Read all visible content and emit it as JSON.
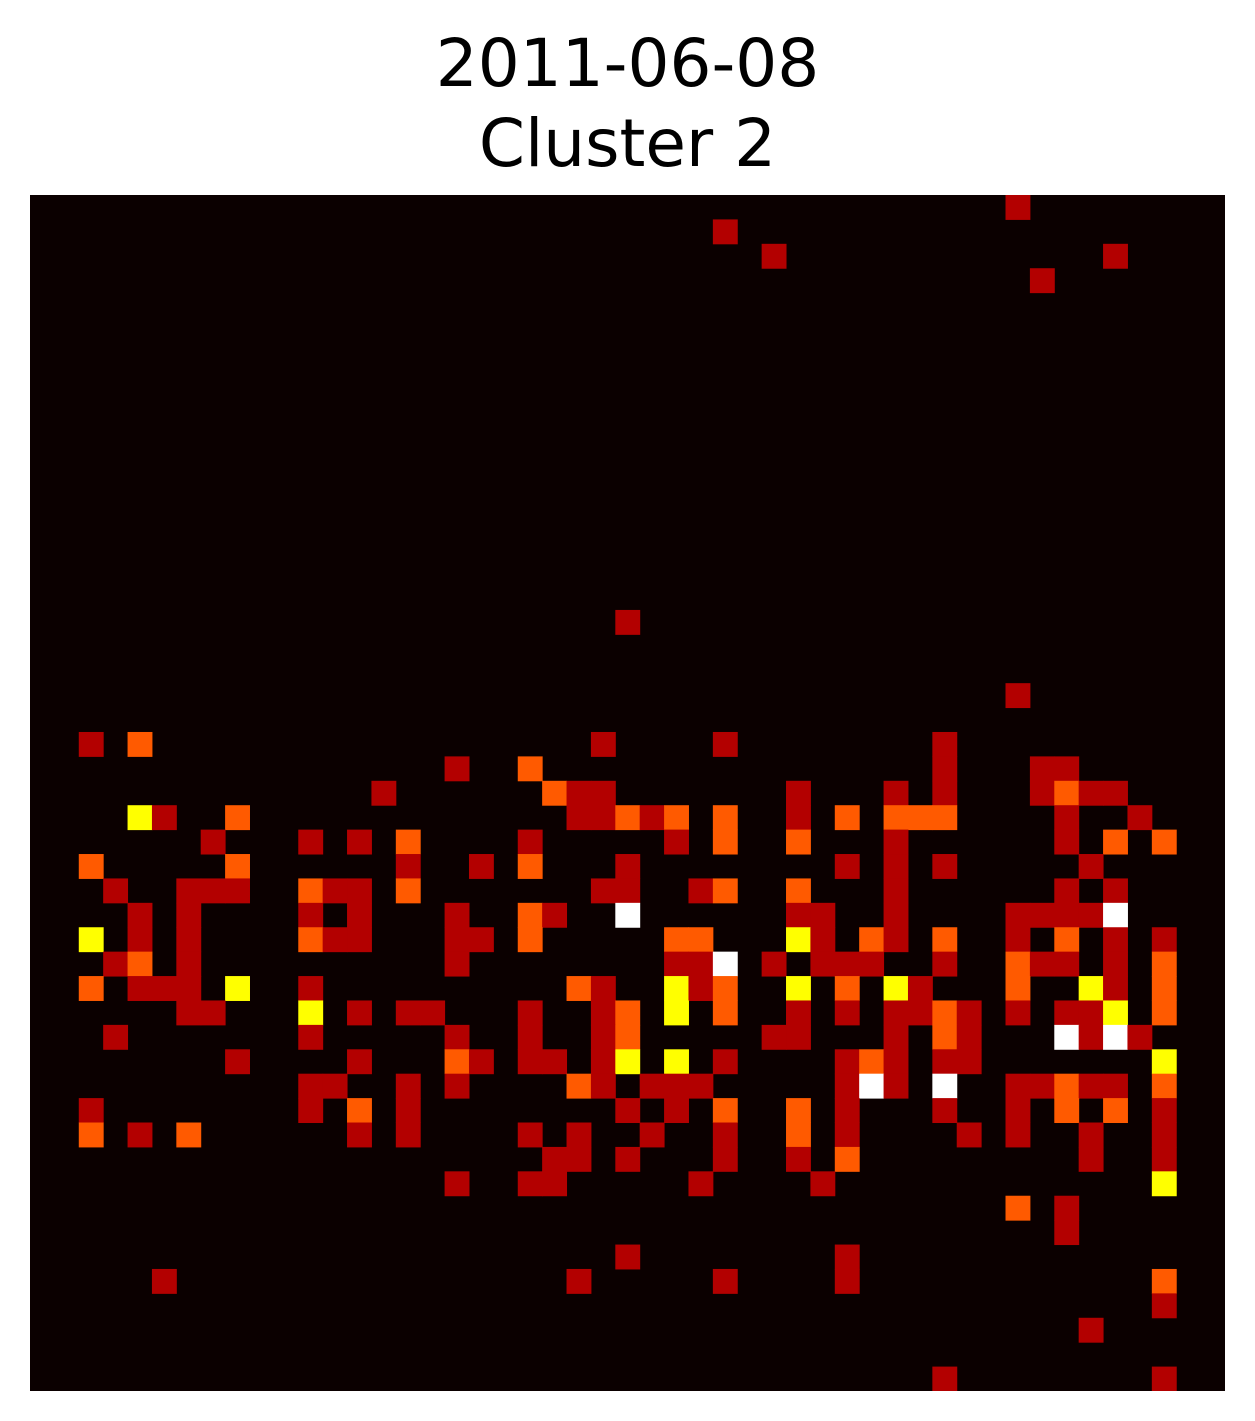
{
  "chart_data": {
    "type": "heatmap",
    "title": "2011-06-08",
    "subtitle": "Cluster 2",
    "xlabel": "",
    "ylabel": "",
    "axes_visible": false,
    "grid": false,
    "legend": "none",
    "colormap": "hot",
    "value_range": [
      0,
      4
    ],
    "n_rows": 49,
    "n_cols": 49,
    "colors": {
      "0": "#0b0000",
      "1": "#b30000",
      "2": "#ff5a00",
      "3": "#ffff00",
      "4": "#ffffff"
    },
    "cells": [
      [
        0,
        40,
        1
      ],
      [
        1,
        28,
        1
      ],
      [
        2,
        30,
        1
      ],
      [
        2,
        44,
        1
      ],
      [
        3,
        41,
        1
      ],
      [
        17,
        24,
        1
      ],
      [
        20,
        40,
        1
      ],
      [
        22,
        2,
        1
      ],
      [
        22,
        4,
        2
      ],
      [
        22,
        23,
        1
      ],
      [
        22,
        28,
        1
      ],
      [
        22,
        37,
        1
      ],
      [
        23,
        17,
        1
      ],
      [
        23,
        20,
        2
      ],
      [
        23,
        37,
        1
      ],
      [
        23,
        41,
        1
      ],
      [
        23,
        42,
        1
      ],
      [
        24,
        14,
        1
      ],
      [
        24,
        21,
        2
      ],
      [
        24,
        22,
        1
      ],
      [
        24,
        23,
        1
      ],
      [
        24,
        31,
        1
      ],
      [
        24,
        35,
        1
      ],
      [
        24,
        37,
        1
      ],
      [
        24,
        41,
        1
      ],
      [
        24,
        42,
        2
      ],
      [
        24,
        43,
        1
      ],
      [
        24,
        44,
        1
      ],
      [
        25,
        4,
        3
      ],
      [
        25,
        5,
        1
      ],
      [
        25,
        8,
        2
      ],
      [
        25,
        22,
        1
      ],
      [
        25,
        23,
        1
      ],
      [
        25,
        24,
        2
      ],
      [
        25,
        25,
        1
      ],
      [
        25,
        26,
        2
      ],
      [
        25,
        28,
        2
      ],
      [
        25,
        31,
        1
      ],
      [
        25,
        33,
        2
      ],
      [
        25,
        35,
        2
      ],
      [
        25,
        36,
        2
      ],
      [
        25,
        37,
        2
      ],
      [
        25,
        42,
        1
      ],
      [
        25,
        45,
        1
      ],
      [
        26,
        7,
        1
      ],
      [
        26,
        11,
        1
      ],
      [
        26,
        13,
        1
      ],
      [
        26,
        15,
        2
      ],
      [
        26,
        20,
        1
      ],
      [
        26,
        26,
        1
      ],
      [
        26,
        28,
        2
      ],
      [
        26,
        31,
        2
      ],
      [
        26,
        35,
        1
      ],
      [
        26,
        42,
        1
      ],
      [
        26,
        44,
        2
      ],
      [
        26,
        46,
        2
      ],
      [
        27,
        2,
        2
      ],
      [
        27,
        8,
        2
      ],
      [
        27,
        15,
        1
      ],
      [
        27,
        18,
        1
      ],
      [
        27,
        20,
        2
      ],
      [
        27,
        24,
        1
      ],
      [
        27,
        33,
        1
      ],
      [
        27,
        35,
        1
      ],
      [
        27,
        37,
        1
      ],
      [
        27,
        43,
        1
      ],
      [
        28,
        3,
        1
      ],
      [
        28,
        6,
        1
      ],
      [
        28,
        7,
        1
      ],
      [
        28,
        8,
        1
      ],
      [
        28,
        11,
        2
      ],
      [
        28,
        12,
        1
      ],
      [
        28,
        13,
        1
      ],
      [
        28,
        15,
        2
      ],
      [
        28,
        23,
        1
      ],
      [
        28,
        24,
        1
      ],
      [
        28,
        27,
        1
      ],
      [
        28,
        28,
        2
      ],
      [
        28,
        31,
        2
      ],
      [
        28,
        35,
        1
      ],
      [
        28,
        42,
        1
      ],
      [
        28,
        44,
        1
      ],
      [
        29,
        4,
        1
      ],
      [
        29,
        6,
        1
      ],
      [
        29,
        11,
        1
      ],
      [
        29,
        13,
        1
      ],
      [
        29,
        17,
        1
      ],
      [
        29,
        20,
        2
      ],
      [
        29,
        21,
        1
      ],
      [
        29,
        24,
        4
      ],
      [
        29,
        31,
        1
      ],
      [
        29,
        32,
        1
      ],
      [
        29,
        35,
        1
      ],
      [
        29,
        40,
        1
      ],
      [
        29,
        41,
        1
      ],
      [
        29,
        42,
        1
      ],
      [
        29,
        43,
        1
      ],
      [
        29,
        44,
        4
      ],
      [
        30,
        2,
        3
      ],
      [
        30,
        4,
        1
      ],
      [
        30,
        6,
        1
      ],
      [
        30,
        11,
        2
      ],
      [
        30,
        12,
        1
      ],
      [
        30,
        13,
        1
      ],
      [
        30,
        17,
        1
      ],
      [
        30,
        18,
        1
      ],
      [
        30,
        20,
        2
      ],
      [
        30,
        26,
        2
      ],
      [
        30,
        27,
        2
      ],
      [
        30,
        31,
        3
      ],
      [
        30,
        32,
        1
      ],
      [
        30,
        34,
        2
      ],
      [
        30,
        35,
        1
      ],
      [
        30,
        37,
        2
      ],
      [
        30,
        40,
        1
      ],
      [
        30,
        42,
        2
      ],
      [
        30,
        44,
        1
      ],
      [
        30,
        46,
        1
      ],
      [
        31,
        3,
        1
      ],
      [
        31,
        4,
        2
      ],
      [
        31,
        6,
        1
      ],
      [
        31,
        17,
        1
      ],
      [
        31,
        26,
        1
      ],
      [
        31,
        27,
        1
      ],
      [
        31,
        28,
        4
      ],
      [
        31,
        30,
        1
      ],
      [
        31,
        32,
        1
      ],
      [
        31,
        33,
        1
      ],
      [
        31,
        34,
        1
      ],
      [
        31,
        37,
        1
      ],
      [
        31,
        40,
        2
      ],
      [
        31,
        41,
        1
      ],
      [
        31,
        42,
        1
      ],
      [
        31,
        44,
        1
      ],
      [
        31,
        46,
        2
      ],
      [
        32,
        2,
        2
      ],
      [
        32,
        4,
        1
      ],
      [
        32,
        5,
        1
      ],
      [
        32,
        6,
        1
      ],
      [
        32,
        8,
        3
      ],
      [
        32,
        11,
        1
      ],
      [
        32,
        22,
        2
      ],
      [
        32,
        23,
        1
      ],
      [
        32,
        26,
        3
      ],
      [
        32,
        27,
        1
      ],
      [
        32,
        28,
        2
      ],
      [
        32,
        31,
        3
      ],
      [
        32,
        33,
        2
      ],
      [
        32,
        35,
        3
      ],
      [
        32,
        36,
        1
      ],
      [
        32,
        40,
        2
      ],
      [
        32,
        43,
        3
      ],
      [
        32,
        44,
        1
      ],
      [
        32,
        46,
        2
      ],
      [
        33,
        6,
        1
      ],
      [
        33,
        7,
        1
      ],
      [
        33,
        11,
        3
      ],
      [
        33,
        13,
        1
      ],
      [
        33,
        15,
        1
      ],
      [
        33,
        16,
        1
      ],
      [
        33,
        20,
        1
      ],
      [
        33,
        23,
        1
      ],
      [
        33,
        24,
        2
      ],
      [
        33,
        26,
        3
      ],
      [
        33,
        28,
        2
      ],
      [
        33,
        31,
        1
      ],
      [
        33,
        33,
        1
      ],
      [
        33,
        35,
        1
      ],
      [
        33,
        36,
        1
      ],
      [
        33,
        37,
        2
      ],
      [
        33,
        38,
        1
      ],
      [
        33,
        40,
        1
      ],
      [
        33,
        42,
        1
      ],
      [
        33,
        43,
        1
      ],
      [
        33,
        44,
        3
      ],
      [
        33,
        46,
        2
      ],
      [
        34,
        3,
        1
      ],
      [
        34,
        11,
        1
      ],
      [
        34,
        17,
        1
      ],
      [
        34,
        20,
        1
      ],
      [
        34,
        23,
        1
      ],
      [
        34,
        24,
        2
      ],
      [
        34,
        30,
        1
      ],
      [
        34,
        31,
        1
      ],
      [
        34,
        35,
        1
      ],
      [
        34,
        37,
        2
      ],
      [
        34,
        38,
        1
      ],
      [
        34,
        42,
        4
      ],
      [
        34,
        43,
        1
      ],
      [
        34,
        44,
        4
      ],
      [
        34,
        45,
        1
      ],
      [
        35,
        8,
        1
      ],
      [
        35,
        13,
        1
      ],
      [
        35,
        17,
        2
      ],
      [
        35,
        18,
        1
      ],
      [
        35,
        20,
        1
      ],
      [
        35,
        21,
        1
      ],
      [
        35,
        23,
        1
      ],
      [
        35,
        24,
        3
      ],
      [
        35,
        26,
        3
      ],
      [
        35,
        28,
        1
      ],
      [
        35,
        33,
        1
      ],
      [
        35,
        34,
        2
      ],
      [
        35,
        35,
        1
      ],
      [
        35,
        37,
        1
      ],
      [
        35,
        38,
        1
      ],
      [
        35,
        46,
        3
      ],
      [
        36,
        11,
        1
      ],
      [
        36,
        12,
        1
      ],
      [
        36,
        15,
        1
      ],
      [
        36,
        17,
        1
      ],
      [
        36,
        22,
        2
      ],
      [
        36,
        23,
        1
      ],
      [
        36,
        25,
        1
      ],
      [
        36,
        26,
        1
      ],
      [
        36,
        27,
        1
      ],
      [
        36,
        33,
        1
      ],
      [
        36,
        34,
        4
      ],
      [
        36,
        35,
        1
      ],
      [
        36,
        37,
        4
      ],
      [
        36,
        40,
        1
      ],
      [
        36,
        41,
        1
      ],
      [
        36,
        42,
        2
      ],
      [
        36,
        43,
        1
      ],
      [
        36,
        44,
        1
      ],
      [
        36,
        46,
        2
      ],
      [
        37,
        2,
        1
      ],
      [
        37,
        11,
        1
      ],
      [
        37,
        13,
        2
      ],
      [
        37,
        15,
        1
      ],
      [
        37,
        24,
        1
      ],
      [
        37,
        26,
        1
      ],
      [
        37,
        28,
        2
      ],
      [
        37,
        31,
        2
      ],
      [
        37,
        33,
        1
      ],
      [
        37,
        37,
        1
      ],
      [
        37,
        40,
        1
      ],
      [
        37,
        42,
        2
      ],
      [
        37,
        44,
        2
      ],
      [
        37,
        46,
        1
      ],
      [
        38,
        2,
        2
      ],
      [
        38,
        4,
        1
      ],
      [
        38,
        6,
        2
      ],
      [
        38,
        13,
        1
      ],
      [
        38,
        15,
        1
      ],
      [
        38,
        20,
        1
      ],
      [
        38,
        22,
        1
      ],
      [
        38,
        25,
        1
      ],
      [
        38,
        28,
        1
      ],
      [
        38,
        31,
        2
      ],
      [
        38,
        33,
        1
      ],
      [
        38,
        38,
        1
      ],
      [
        38,
        40,
        1
      ],
      [
        38,
        43,
        1
      ],
      [
        38,
        46,
        1
      ],
      [
        39,
        21,
        1
      ],
      [
        39,
        22,
        1
      ],
      [
        39,
        24,
        1
      ],
      [
        39,
        28,
        1
      ],
      [
        39,
        31,
        1
      ],
      [
        39,
        33,
        2
      ],
      [
        39,
        43,
        1
      ],
      [
        39,
        46,
        1
      ],
      [
        40,
        17,
        1
      ],
      [
        40,
        20,
        1
      ],
      [
        40,
        21,
        1
      ],
      [
        40,
        27,
        1
      ],
      [
        40,
        32,
        1
      ],
      [
        40,
        46,
        3
      ],
      [
        41,
        40,
        2
      ],
      [
        41,
        42,
        1
      ],
      [
        42,
        42,
        1
      ],
      [
        43,
        24,
        1
      ],
      [
        43,
        33,
        1
      ],
      [
        44,
        5,
        1
      ],
      [
        44,
        22,
        1
      ],
      [
        44,
        28,
        1
      ],
      [
        44,
        33,
        1
      ],
      [
        44,
        46,
        2
      ],
      [
        45,
        46,
        1
      ],
      [
        46,
        43,
        1
      ],
      [
        48,
        37,
        1
      ],
      [
        48,
        46,
        1
      ]
    ]
  }
}
